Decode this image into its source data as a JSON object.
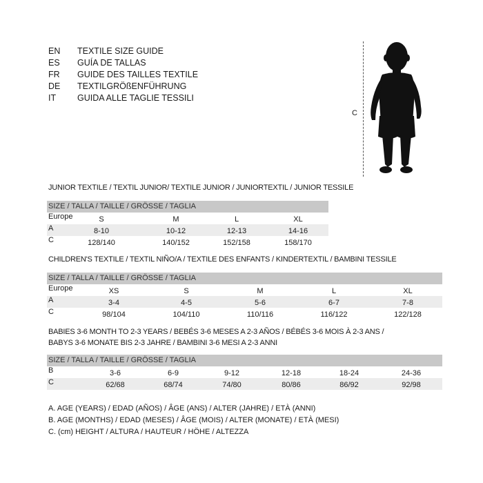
{
  "languages": [
    {
      "code": "EN",
      "title": "TEXTILE SIZE GUIDE"
    },
    {
      "code": "ES",
      "title": "GUÍA DE TALLAS"
    },
    {
      "code": "FR",
      "title": "GUIDE DES TAILLES TEXTILE"
    },
    {
      "code": "DE",
      "title": "TEXTILGRÖßENFÜHRUNG"
    },
    {
      "code": "IT",
      "title": "GUIDA ALLE TAGLIE TESSILI"
    }
  ],
  "figure": {
    "measure_label": "C",
    "icon": "child-silhouette"
  },
  "size_header": "SIZE / TALLA / TAILLE / GRÖSSE / TAGLIA",
  "junior": {
    "heading": "JUNIOR TEXTILE / TEXTIL JUNIOR/ TEXTILE JUNIOR / JUNIORTEXTIL / JUNIOR TESSILE",
    "rows": [
      {
        "label": "Europe",
        "values": [
          "S",
          "M",
          "L",
          "XL"
        ]
      },
      {
        "label": "A",
        "values": [
          "8-10",
          "10-12",
          "12-13",
          "14-16"
        ]
      },
      {
        "label": "C",
        "values": [
          "128/140",
          "140/152",
          "152/158",
          "158/170"
        ]
      }
    ]
  },
  "children": {
    "heading": "CHILDREN'S TEXTILE / TEXTIL NIÑO/A / TEXTILE DES ENFANTS / KINDERTEXTIL / BAMBINI TESSILE",
    "rows": [
      {
        "label": "Europe",
        "values": [
          "XS",
          "S",
          "M",
          "L",
          "XL"
        ]
      },
      {
        "label": "A",
        "values": [
          "3-4",
          "4-5",
          "5-6",
          "6-7",
          "7-8"
        ]
      },
      {
        "label": "C",
        "values": [
          "98/104",
          "104/110",
          "110/116",
          "116/122",
          "122/128"
        ]
      }
    ]
  },
  "babies": {
    "heading_line1": "BABIES 3-6 MONTH TO 2-3 YEARS / BEBÉS 3-6 MESES A 2-3 AÑOS / BÉBÉS 3-6 MOIS À 2-3 ANS /",
    "heading_line2": "BABYS 3-6 MONATE BIS 2-3 JAHRE / BAMBINI 3-6 MESI A 2-3 ANNI",
    "rows": [
      {
        "label": "B",
        "values": [
          "3-6",
          "6-9",
          "9-12",
          "12-18",
          "18-24",
          "24-36"
        ]
      },
      {
        "label": "C",
        "values": [
          "62/68",
          "68/74",
          "74/80",
          "80/86",
          "86/92",
          "92/98"
        ]
      }
    ]
  },
  "legend": [
    "A. AGE (YEARS) / EDAD (AÑOS) / ÂGE (ANS) / ALTER (JAHRE) / ETÀ (ANNI)",
    "B. AGE (MONTHS) / EDAD (MESES) / ÂGE (MOIS) / ALTER (MONATE) / ETÀ (MESI)",
    "C. (cm) HEIGHT / ALTURA / HAUTEUR / HÖHE / ALTEZZA"
  ]
}
